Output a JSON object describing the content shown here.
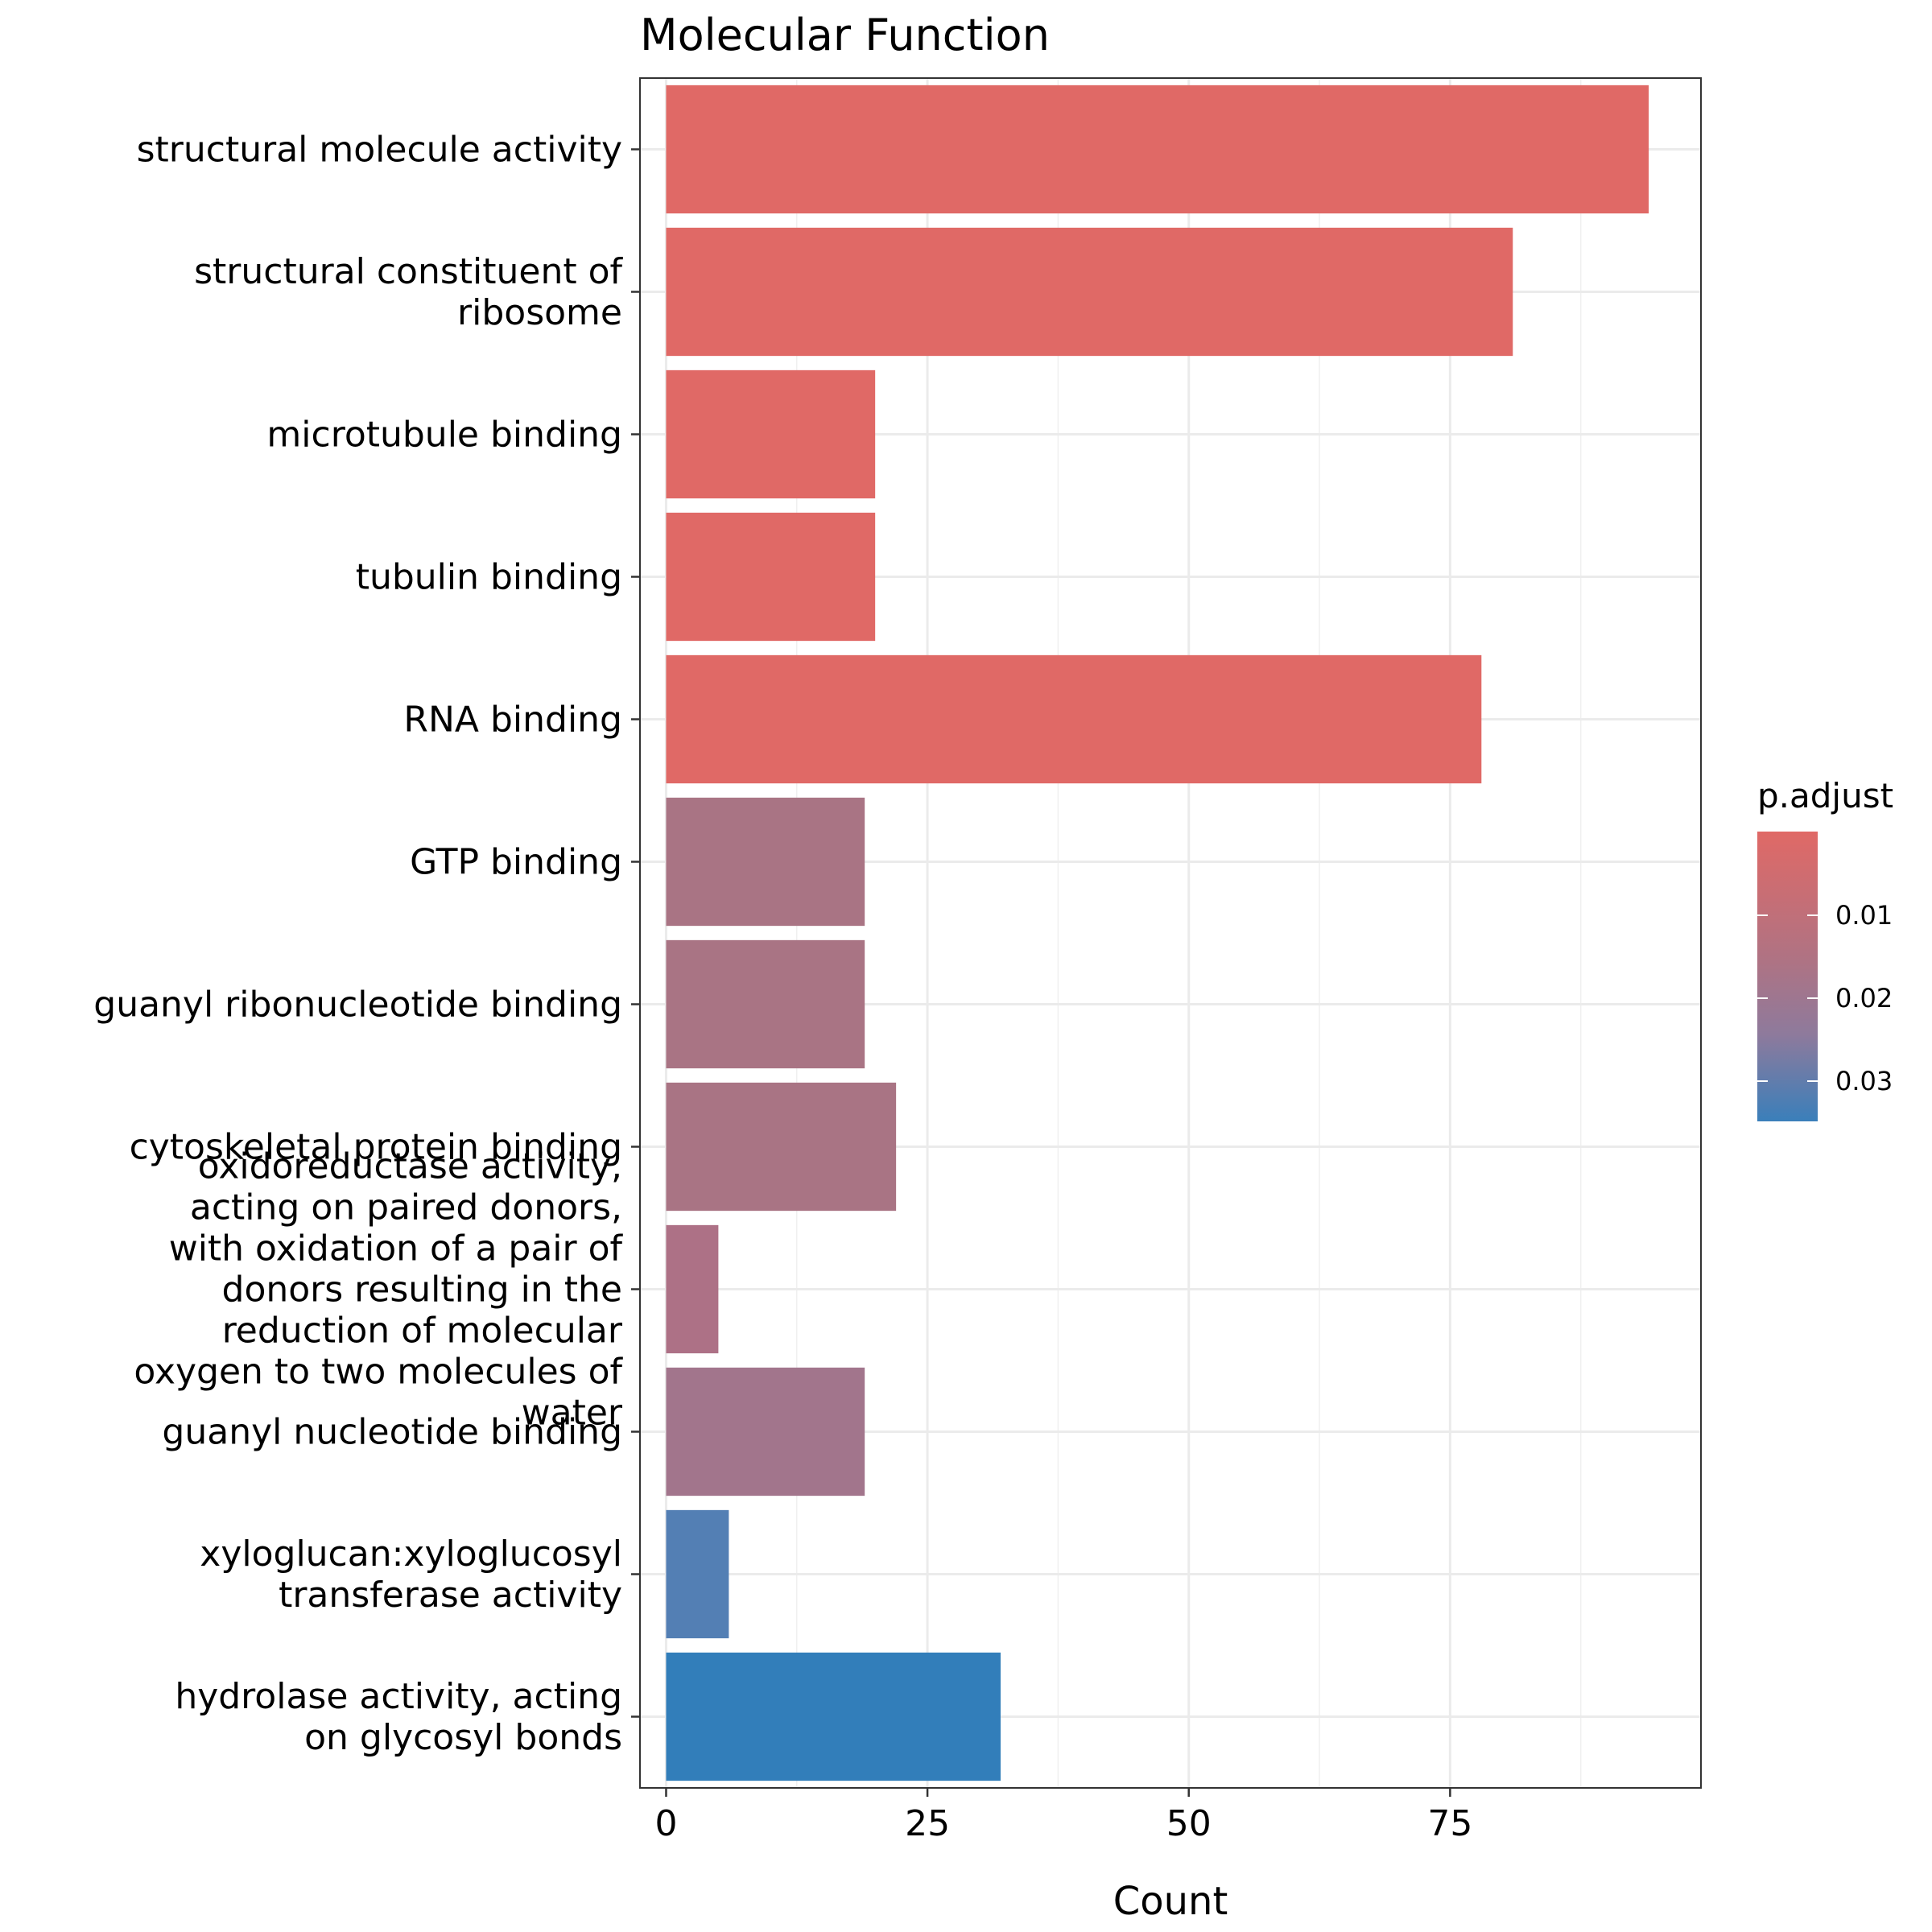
{
  "chart_data": {
    "type": "bar",
    "orientation": "horizontal",
    "title": "Molecular Function",
    "xlabel": "Count",
    "ylabel": "",
    "xlim": [
      -2.5,
      99.0
    ],
    "xticks": [
      0,
      25,
      50,
      75
    ],
    "grid": true,
    "legend_position": "right",
    "legend": {
      "title": "p.adjust",
      "ticks": [
        "0.01",
        "0.02",
        "0.03"
      ],
      "colors": {
        "low": "#E06B66",
        "mid": "#A67389",
        "high": "#3A7FBA"
      }
    },
    "categories": [
      [
        "structural molecule activity"
      ],
      [
        "structural constituent of",
        "ribosome"
      ],
      [
        "microtubule binding"
      ],
      [
        "tubulin binding"
      ],
      [
        "RNA binding"
      ],
      [
        "GTP binding"
      ],
      [
        "guanyl ribonucleotide binding"
      ],
      [
        "cytoskeletal protein binding"
      ],
      [
        "oxidoreductase activity,",
        "acting on paired donors,",
        "with oxidation of a pair of",
        "donors resulting in the",
        "reduction of molecular",
        "oxygen to two molecules of",
        "water"
      ],
      [
        "guanyl nucleotide binding"
      ],
      [
        "xyloglucan:xyloglucosyl",
        "transferase activity"
      ],
      [
        "hydrolase activity, acting",
        "on glycosyl bonds"
      ]
    ],
    "values": [
      94,
      81,
      20,
      20,
      78,
      19,
      19,
      22,
      5,
      19,
      6,
      32
    ],
    "bar_colors": [
      "#E06966",
      "#E06966",
      "#E06966",
      "#E06966",
      "#E06966",
      "#A97484",
      "#A97484",
      "#A97484",
      "#AD7186",
      "#A2758C",
      "#537FB4",
      "#327EBA"
    ]
  }
}
